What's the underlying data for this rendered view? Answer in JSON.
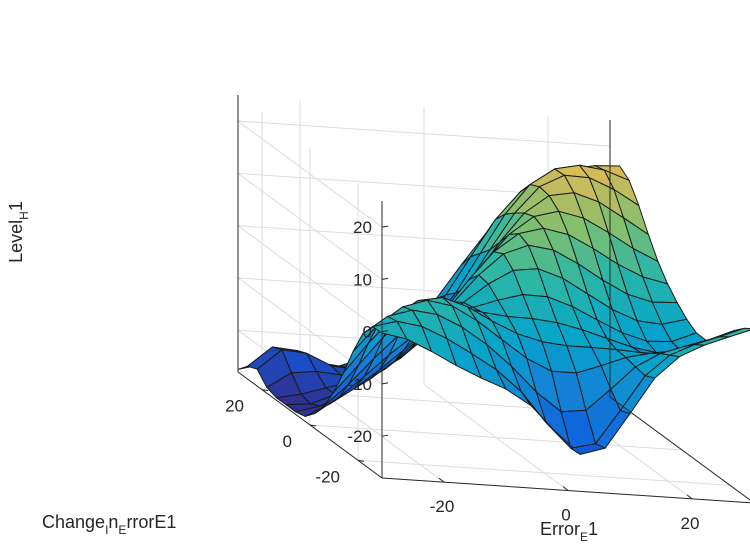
{
  "chart_data": {
    "type": "surface",
    "title": "",
    "xlabel": {
      "main": "Error",
      "sub": "E",
      "tail": "1"
    },
    "ylabel": {
      "main": "Change",
      "sub1": "I",
      "mid": "n",
      "sub2": "E",
      "tail": "rrorE1"
    },
    "zlabel": {
      "main": "Level",
      "sub": "H",
      "tail": "1"
    },
    "x_ticks": [
      "-20",
      "0",
      "20"
    ],
    "y_ticks": [
      "-20",
      "0",
      "20"
    ],
    "z_ticks": [
      "-20",
      "-10",
      "0",
      "10",
      "20"
    ],
    "xlim": [
      -30,
      30
    ],
    "ylim": [
      -30,
      30
    ],
    "zlim": [
      -28,
      25
    ],
    "x": [
      -30,
      -26,
      -22,
      -18,
      -14,
      -10,
      -6,
      -2,
      2,
      6,
      10,
      14,
      18,
      22,
      26,
      30
    ],
    "y": [
      -30,
      -26,
      -22,
      -18,
      -14,
      -10,
      -6,
      -2,
      2,
      6,
      10,
      14,
      18,
      22,
      26,
      30
    ],
    "z_model": {
      "description_free": true,
      "base": -6,
      "ridge_amp": 30,
      "ridge_width": 14,
      "corner_low": -38,
      "colormap": "parula"
    }
  }
}
